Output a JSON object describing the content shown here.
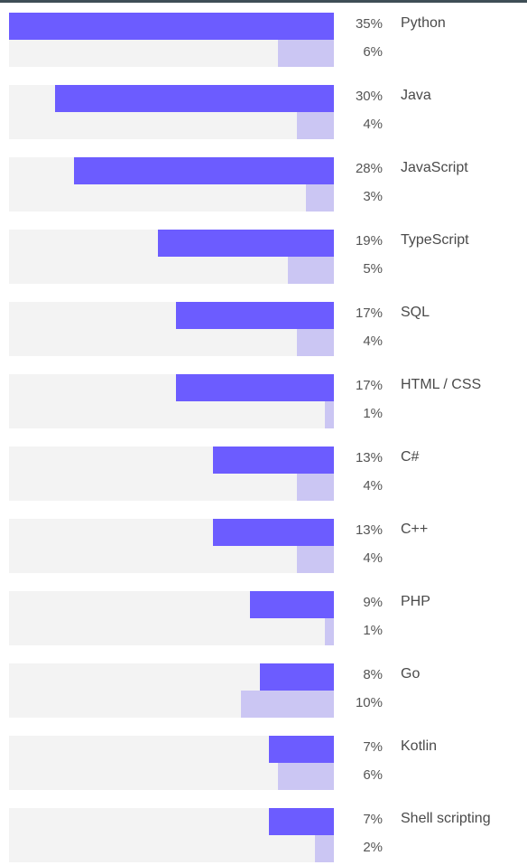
{
  "chart_data": {
    "type": "bar",
    "orientation": "horizontal",
    "title": "",
    "xlabel": "",
    "ylabel": "",
    "xlim": [
      0,
      35
    ],
    "grid": false,
    "categories": [
      "Python",
      "Java",
      "JavaScript",
      "TypeScript",
      "SQL",
      "HTML / CSS",
      "C#",
      "C++",
      "PHP",
      "Go",
      "Kotlin",
      "Shell scripting"
    ],
    "series": [
      {
        "values": [
          35,
          30,
          28,
          19,
          17,
          17,
          13,
          13,
          9,
          8,
          7,
          7
        ],
        "labels": [
          "35%",
          "30%",
          "28%",
          "19%",
          "17%",
          "17%",
          "13%",
          "13%",
          "9%",
          "8%",
          "7%",
          "7%"
        ],
        "color": "#6c5cff"
      },
      {
        "values": [
          6,
          4,
          3,
          5,
          4,
          1,
          4,
          4,
          1,
          10,
          6,
          2
        ],
        "labels": [
          "6%",
          "4%",
          "3%",
          "5%",
          "4%",
          "1%",
          "4%",
          "4%",
          "1%",
          "10%",
          "6%",
          "2%"
        ],
        "color": "#cbc6f3"
      }
    ]
  }
}
